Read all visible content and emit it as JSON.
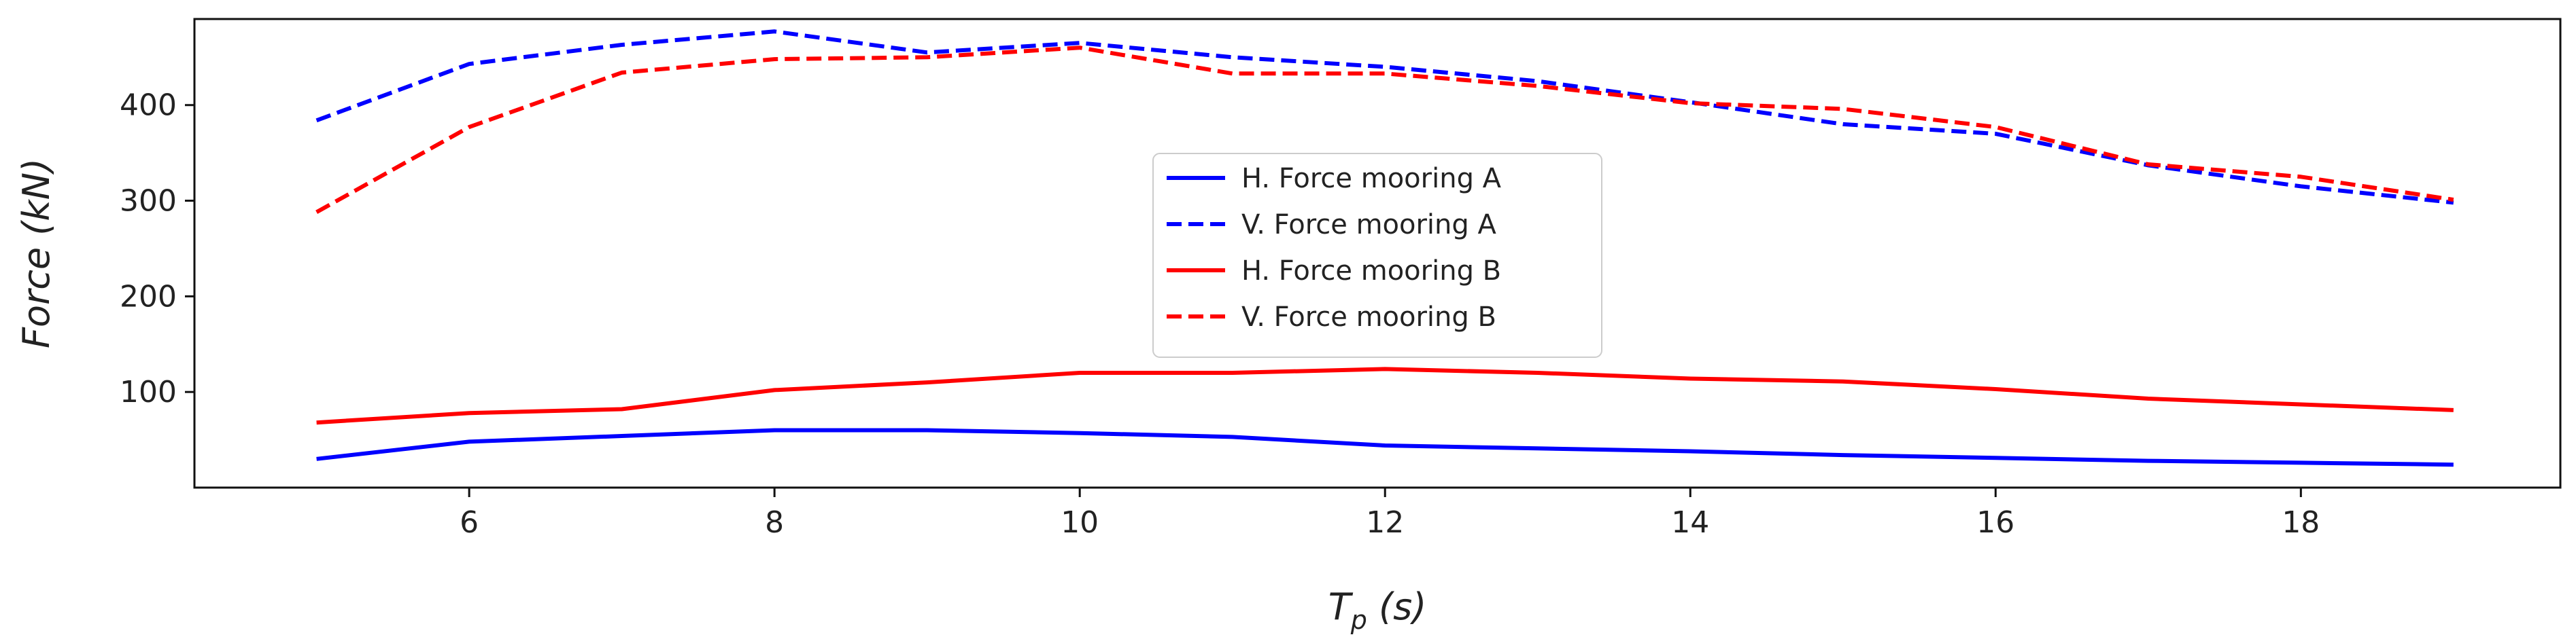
{
  "chart_data": {
    "type": "line",
    "title": "",
    "xlabel": "T_p (s)",
    "xlabel_main": "T",
    "xlabel_sub": "p",
    "xlabel_unit": " (s)",
    "ylabel": "Force (kN)",
    "xlim": [
      4.2,
      19.7
    ],
    "ylim": [
      0,
      490
    ],
    "xticks": [
      6,
      8,
      10,
      12,
      14,
      16,
      18
    ],
    "yticks": [
      100,
      200,
      300,
      400
    ],
    "grid": false,
    "legend_position": "center",
    "x": [
      5,
      6,
      7,
      8,
      9,
      10,
      11,
      12,
      13,
      14,
      15,
      16,
      17,
      18,
      19
    ],
    "series": [
      {
        "name": "H. Force mooring A",
        "color": "#0000ff",
        "dash": "solid",
        "values": [
          30,
          48,
          54,
          60,
          60,
          57,
          53,
          44,
          41,
          38,
          34,
          31,
          28,
          26,
          24
        ]
      },
      {
        "name": "V. Force mooring A",
        "color": "#0000ff",
        "dash": "dashed",
        "values": [
          384,
          443,
          463,
          477,
          455,
          465,
          450,
          440,
          425,
          403,
          380,
          370,
          337,
          315,
          298
        ]
      },
      {
        "name": "H. Force mooring B",
        "color": "#ff0000",
        "dash": "solid",
        "values": [
          68,
          78,
          82,
          102,
          110,
          120,
          120,
          124,
          120,
          114,
          111,
          103,
          93,
          87,
          81
        ]
      },
      {
        "name": "V. Force mooring B",
        "color": "#ff0000",
        "dash": "dashed",
        "values": [
          288,
          377,
          434,
          448,
          450,
          460,
          433,
          433,
          420,
          402,
          396,
          377,
          338,
          325,
          301
        ]
      }
    ]
  }
}
